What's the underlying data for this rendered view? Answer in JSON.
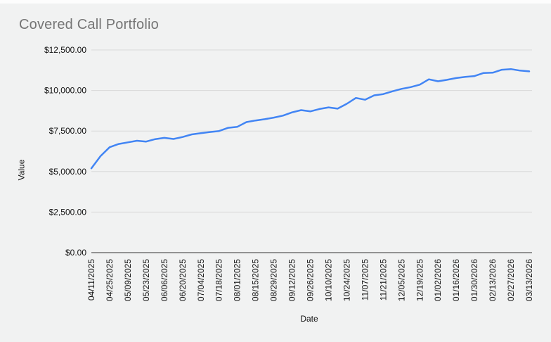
{
  "title": "Covered Call Portfolio",
  "colors": {
    "background": "#f1f2f2",
    "line": "#4285f4",
    "title_text": "#757575",
    "tick_text": "#111111",
    "gridline": "#d9d9d9",
    "axis_line": "#333333"
  },
  "chart_data": {
    "type": "line",
    "title": "Covered Call Portfolio",
    "xlabel": "Date",
    "ylabel": "Value",
    "grid": true,
    "legend": "none",
    "ylim": [
      0,
      12500
    ],
    "y_ticks": [
      0,
      2500,
      5000,
      7500,
      10000,
      12500
    ],
    "y_tick_labels": [
      "$0.00",
      "$2,500.00",
      "$5,000.00",
      "$7,500.00",
      "$10,000.00",
      "$12,500.00"
    ],
    "x_tick_labels": [
      "04/11/2025",
      "04/25/2025",
      "05/09/2025",
      "05/23/2025",
      "06/06/2025",
      "06/20/2025",
      "07/04/2025",
      "07/18/2025",
      "08/01/2025",
      "08/15/2025",
      "08/29/2025",
      "09/12/2025",
      "09/26/2025",
      "10/10/2025",
      "10/24/2025",
      "11/07/2025",
      "11/21/2025",
      "12/05/2025",
      "12/19/2025",
      "01/02/2026",
      "01/16/2026",
      "01/30/2026",
      "02/13/2026",
      "02/27/2026",
      "03/13/2026"
    ],
    "x": [
      "04/11/2025",
      "04/18/2025",
      "04/25/2025",
      "05/02/2025",
      "05/09/2025",
      "05/16/2025",
      "05/23/2025",
      "05/30/2025",
      "06/06/2025",
      "06/13/2025",
      "06/20/2025",
      "06/27/2025",
      "07/04/2025",
      "07/11/2025",
      "07/18/2025",
      "07/25/2025",
      "08/01/2025",
      "08/08/2025",
      "08/15/2025",
      "08/22/2025",
      "08/29/2025",
      "09/05/2025",
      "09/12/2025",
      "09/19/2025",
      "09/26/2025",
      "10/03/2025",
      "10/10/2025",
      "10/17/2025",
      "10/24/2025",
      "10/31/2025",
      "11/07/2025",
      "11/14/2025",
      "11/21/2025",
      "11/28/2025",
      "12/05/2025",
      "12/12/2025",
      "12/19/2025",
      "12/26/2025",
      "01/02/2026",
      "01/09/2026",
      "01/16/2026",
      "01/23/2026",
      "01/30/2026",
      "02/06/2026",
      "02/13/2026",
      "02/20/2026",
      "02/27/2026",
      "03/06/2026",
      "03/13/2026"
    ],
    "series": [
      {
        "name": "Value",
        "values": [
          5200,
          5950,
          6500,
          6700,
          6800,
          6900,
          6850,
          7000,
          7080,
          7010,
          7130,
          7290,
          7370,
          7440,
          7500,
          7700,
          7760,
          8050,
          8150,
          8230,
          8330,
          8450,
          8650,
          8790,
          8710,
          8860,
          8960,
          8880,
          9180,
          9540,
          9430,
          9700,
          9780,
          9950,
          10100,
          10210,
          10360,
          10690,
          10570,
          10660,
          10770,
          10840,
          10890,
          11080,
          11100,
          11280,
          11320,
          11230,
          11180
        ]
      }
    ]
  }
}
